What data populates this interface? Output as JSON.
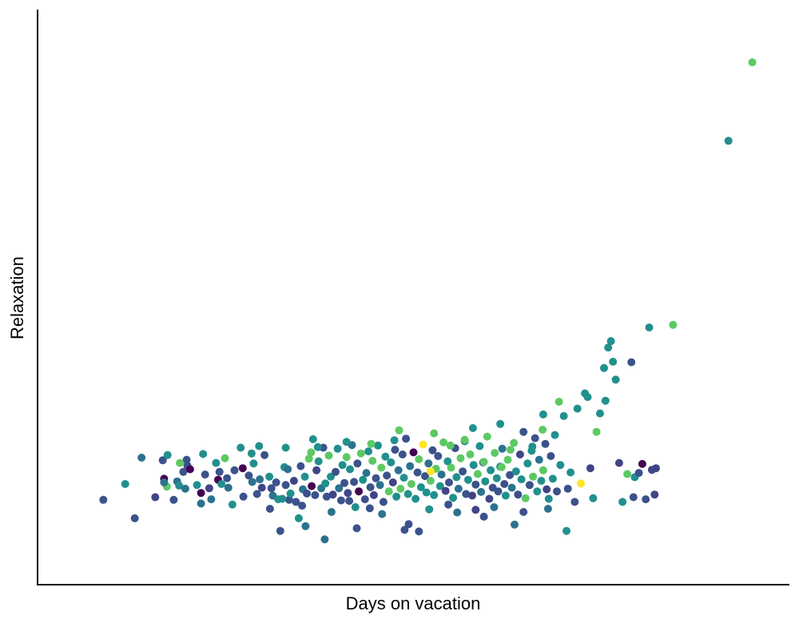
{
  "chart_data": {
    "type": "scatter",
    "xlabel": "Days on vacation",
    "ylabel": "Relaxation",
    "xlim": [
      0,
      100
    ],
    "ylim": [
      0,
      100
    ],
    "grid": false,
    "legend": "none",
    "ticks_shown": false,
    "colormap": "viridis",
    "color_scale": [
      "#440154",
      "#3b528b",
      "#21908d",
      "#5dc963",
      "#fde725"
    ],
    "points": [
      [
        4.6,
        12
      ],
      [
        7.8,
        15
      ],
      [
        9.2,
        8.5
      ],
      [
        10.2,
        20
      ],
      [
        12.2,
        12.5
      ],
      [
        13.3,
        19.5
      ],
      [
        13.5,
        16
      ],
      [
        13.9,
        14.5
      ],
      [
        14.0,
        20.5
      ],
      [
        13.5,
        15.3
      ],
      [
        14.9,
        12
      ],
      [
        15.4,
        15.5
      ],
      [
        15.7,
        14.7
      ],
      [
        16.3,
        17.3
      ],
      [
        16.6,
        14.1
      ],
      [
        16.8,
        19.6
      ],
      [
        16.9,
        18.5
      ],
      [
        17.3,
        17.8
      ],
      [
        18.3,
        14.8
      ],
      [
        18.9,
        11.3
      ],
      [
        19.2,
        20.7
      ],
      [
        19.5,
        16.8
      ],
      [
        20.1,
        14.2
      ],
      [
        20.4,
        12.1
      ],
      [
        21.1,
        19
      ],
      [
        21.4,
        15.8
      ],
      [
        21.6,
        17.3
      ],
      [
        21.9,
        15.0
      ],
      [
        22.4,
        19.9
      ],
      [
        22.7,
        16.1
      ],
      [
        22.9,
        14.3
      ],
      [
        23.5,
        11.1
      ],
      [
        23.8,
        17.6
      ],
      [
        24.7,
        21.9
      ],
      [
        25.1,
        12.6
      ],
      [
        25.9,
        16.6
      ],
      [
        26.4,
        15.4
      ],
      [
        26.6,
        18.9
      ],
      [
        27.1,
        13.1
      ],
      [
        27.5,
        15.9
      ],
      [
        27.8,
        14.3
      ],
      [
        28.2,
        20.5
      ],
      [
        28.9,
        16.4
      ],
      [
        29.2,
        14.2
      ],
      [
        29.4,
        12.8
      ],
      [
        29.9,
        15.3
      ],
      [
        30.2,
        12.1
      ],
      [
        30.5,
        6.1
      ],
      [
        31.1,
        18.2
      ],
      [
        31.3,
        14.8
      ],
      [
        31.6,
        17.8
      ],
      [
        31.8,
        12.0
      ],
      [
        32.0,
        13.2
      ],
      [
        32.5,
        15.6
      ],
      [
        32.8,
        11.6
      ],
      [
        33.2,
        8.5
      ],
      [
        33.5,
        18.4
      ],
      [
        33.8,
        14.0
      ],
      [
        34.1,
        16.4
      ],
      [
        34.4,
        13.2
      ],
      [
        34.7,
        19.8
      ],
      [
        35.1,
        14.6
      ],
      [
        35.3,
        23.5
      ],
      [
        35.6,
        12.9
      ],
      [
        35.8,
        17.6
      ],
      [
        36.1,
        19.3
      ],
      [
        36.5,
        14.2
      ],
      [
        36.8,
        21.9
      ],
      [
        37.1,
        15.1
      ],
      [
        37.3,
        12.6
      ],
      [
        37.6,
        20.4
      ],
      [
        37.9,
        16.4
      ],
      [
        38.2,
        13.0
      ],
      [
        38.6,
        17.3
      ],
      [
        38.9,
        21.7
      ],
      [
        39.1,
        14.2
      ],
      [
        39.4,
        11.9
      ],
      [
        39.6,
        18.6
      ],
      [
        39.9,
        15.2
      ],
      [
        40.2,
        20.1
      ],
      [
        40.4,
        13.3
      ],
      [
        40.7,
        17.8
      ],
      [
        41.0,
        22.4
      ],
      [
        41.3,
        15.4
      ],
      [
        41.5,
        10.6
      ],
      [
        41.8,
        18.9
      ],
      [
        42.0,
        13.6
      ],
      [
        42.3,
        20.8
      ],
      [
        42.6,
        15.8
      ],
      [
        42.9,
        12.1
      ],
      [
        43.1,
        17.1
      ],
      [
        43.4,
        21.2
      ],
      [
        43.7,
        14.4
      ],
      [
        44.0,
        19.4
      ],
      [
        44.2,
        12.9
      ],
      [
        44.5,
        16.1
      ],
      [
        44.8,
        22.3
      ],
      [
        45.1,
        14.8
      ],
      [
        45.3,
        18.1
      ],
      [
        45.6,
        11.6
      ],
      [
        45.9,
        20.2
      ],
      [
        46.1,
        16.6
      ],
      [
        46.4,
        13.6
      ],
      [
        46.7,
        19.1
      ],
      [
        47.0,
        15.3
      ],
      [
        47.3,
        21.5
      ],
      [
        47.5,
        12.6
      ],
      [
        47.8,
        17.6
      ],
      [
        48.1,
        14.1
      ],
      [
        48.4,
        20.6
      ],
      [
        48.6,
        16.2
      ],
      [
        48.9,
        23.6
      ],
      [
        49.2,
        13.1
      ],
      [
        49.5,
        18.4
      ],
      [
        49.7,
        15.0
      ],
      [
        50.0,
        21.0
      ],
      [
        50.3,
        12.2
      ],
      [
        50.6,
        17.2
      ],
      [
        50.8,
        19.7
      ],
      [
        51.1,
        14.4
      ],
      [
        51.4,
        22.5
      ],
      [
        51.7,
        16.5
      ],
      [
        51.9,
        13.4
      ],
      [
        52.2,
        18.9
      ],
      [
        52.5,
        15.6
      ],
      [
        52.8,
        21.4
      ],
      [
        53.0,
        12.9
      ],
      [
        53.3,
        17.9
      ],
      [
        53.6,
        20.3
      ],
      [
        53.9,
        14.6
      ],
      [
        54.1,
        16.8
      ],
      [
        54.4,
        22.9
      ],
      [
        54.7,
        13.7
      ],
      [
        55.0,
        19.3
      ],
      [
        55.2,
        15.3
      ],
      [
        55.5,
        18.1
      ],
      [
        55.8,
        12.4
      ],
      [
        56.1,
        21.8
      ],
      [
        56.3,
        16.3
      ],
      [
        56.6,
        14.1
      ],
      [
        56.9,
        19.9
      ],
      [
        57.2,
        17.4
      ],
      [
        57.5,
        23.1
      ],
      [
        57.7,
        13.1
      ],
      [
        58.0,
        15.8
      ],
      [
        58.3,
        20.6
      ],
      [
        58.6,
        12.8
      ],
      [
        58.8,
        18.6
      ],
      [
        59.1,
        14.9
      ],
      [
        59.4,
        16.9
      ],
      [
        59.7,
        22.2
      ],
      [
        59.9,
        13.5
      ],
      [
        60.2,
        19.1
      ],
      [
        60.5,
        15.5
      ],
      [
        60.8,
        24.0
      ],
      [
        61.1,
        12.2
      ],
      [
        61.3,
        17.6
      ],
      [
        61.6,
        14.3
      ],
      [
        61.9,
        20.9
      ],
      [
        62.2,
        16.1
      ],
      [
        62.4,
        13.6
      ],
      [
        62.7,
        18.3
      ],
      [
        63.0,
        21.7
      ],
      [
        63.3,
        15.0
      ],
      [
        63.5,
        12.8
      ],
      [
        63.8,
        19.6
      ],
      [
        64.1,
        16.7
      ],
      [
        64.4,
        14.3
      ],
      [
        64.7,
        22.8
      ],
      [
        65.0,
        17.4
      ],
      [
        65.3,
        13.0
      ],
      [
        65.6,
        20.6
      ],
      [
        65.8,
        15.9
      ],
      [
        66.1,
        24.9
      ],
      [
        66.4,
        12.3
      ],
      [
        66.7,
        18.9
      ],
      [
        67.0,
        14.8
      ],
      [
        67.3,
        21.3
      ],
      [
        67.5,
        16.4
      ],
      [
        67.8,
        23.7
      ],
      [
        68.1,
        13.6
      ],
      [
        68.4,
        19.6
      ],
      [
        68.7,
        15.6
      ],
      [
        69.0,
        17.6
      ],
      [
        69.3,
        22.6
      ],
      [
        69.5,
        14.0
      ],
      [
        69.8,
        12.2
      ],
      [
        70.1,
        20.3
      ],
      [
        70.4,
        16.0
      ],
      [
        70.7,
        24.3
      ],
      [
        71.0,
        13.6
      ],
      [
        71.3,
        30.6
      ],
      [
        71.5,
        18.6
      ],
      [
        72.0,
        27.9
      ],
      [
        72.6,
        14.1
      ],
      [
        73.0,
        17.2
      ],
      [
        73.6,
        11.6
      ],
      [
        74.0,
        29.3
      ],
      [
        74.5,
        15.1
      ],
      [
        75.1,
        32.2
      ],
      [
        75.5,
        31.5
      ],
      [
        75.9,
        18.0
      ],
      [
        76.3,
        12.3
      ],
      [
        76.8,
        24.9
      ],
      [
        77.3,
        28.4
      ],
      [
        77.9,
        37.0
      ],
      [
        78.1,
        30.8
      ],
      [
        78.5,
        40.9
      ],
      [
        78.9,
        42.1
      ],
      [
        79.2,
        38.2
      ],
      [
        79.6,
        34.8
      ],
      [
        80.1,
        19.0
      ],
      [
        80.6,
        11.6
      ],
      [
        81.3,
        16.9
      ],
      [
        81.9,
        38.1
      ],
      [
        82.2,
        12.5
      ],
      [
        82.4,
        16.3
      ],
      [
        83.0,
        17.1
      ],
      [
        83.5,
        18.8
      ],
      [
        84.0,
        12.1
      ],
      [
        84.5,
        44.7
      ],
      [
        84.9,
        17.7
      ],
      [
        85.3,
        13.0
      ],
      [
        85.5,
        18.0
      ],
      [
        88.0,
        45.2
      ],
      [
        96.1,
        80.1
      ],
      [
        99.6,
        95.0
      ],
      [
        18.9,
        13.3
      ],
      [
        25.0,
        18.0
      ],
      [
        29.0,
        10.3
      ],
      [
        33.7,
        10.9
      ],
      [
        38.0,
        9.7
      ],
      [
        40.6,
        11.8
      ],
      [
        43.6,
        10.4
      ],
      [
        45.4,
        9.3
      ],
      [
        49.3,
        7.4
      ],
      [
        52.3,
        10.2
      ],
      [
        55.1,
        11.1
      ],
      [
        56.4,
        9.6
      ],
      [
        59.1,
        10.1
      ],
      [
        60.3,
        8.8
      ],
      [
        61.8,
        10.6
      ],
      [
        64.8,
        7.3
      ],
      [
        66.1,
        9.7
      ],
      [
        69.7,
        10.3
      ],
      [
        72.4,
        6.1
      ],
      [
        34.2,
        7.0
      ],
      [
        37.0,
        4.5
      ],
      [
        41.7,
        6.6
      ],
      [
        48.7,
        6.3
      ],
      [
        50.8,
        6.0
      ],
      [
        30.8,
        12.2
      ],
      [
        47.9,
        25.2
      ],
      [
        53.0,
        24.6
      ],
      [
        57.5,
        23.4
      ],
      [
        52.5,
        17.4
      ],
      [
        55.4,
        22.3
      ],
      [
        60.3,
        19.2
      ],
      [
        62.9,
        18.2
      ],
      [
        64.2,
        21.5
      ],
      [
        67.4,
        22.1
      ],
      [
        68.9,
        25.3
      ],
      [
        15.8,
        19.0
      ],
      [
        43.8,
        22.6
      ],
      [
        47.2,
        23.3
      ],
      [
        26.3,
        20.8
      ],
      [
        31.3,
        21.9
      ],
      [
        35.0,
        21.0
      ],
      [
        40.2,
        23.0
      ],
      [
        36.0,
        22.0
      ],
      [
        27.4,
        22.2
      ],
      [
        58.7,
        25.6
      ],
      [
        62.7,
        26.4
      ],
      [
        69.0,
        28.2
      ]
    ],
    "colors": [
      "#3b528b",
      "#21908d",
      "#3b528b",
      "#2c728e",
      "#414487",
      "#3b528b",
      "#440154",
      "#5dc963",
      "#21908d",
      "#2c728e",
      "#3b528b",
      "#2c728e",
      "#21908d",
      "#3b528b",
      "#2c728e",
      "#3b528b",
      "#3b528b",
      "#440154",
      "#21908d",
      "#2c728e",
      "#21908d",
      "#3b528b",
      "#414487",
      "#2c728e",
      "#21908d",
      "#440154",
      "#3b528b",
      "#21908d",
      "#5dc963",
      "#3b528b",
      "#2c728e",
      "#21908d",
      "#3b528b",
      "#21908d",
      "#3b528b",
      "#3b528b",
      "#2c728e",
      "#21908d",
      "#3b528b",
      "#2c728e",
      "#414487",
      "#3b528b",
      "#21908d",
      "#3b528b",
      "#2c728e",
      "#3b528b",
      "#21908d",
      "#3b528b",
      "#21908d",
      "#3b528b",
      "#2c728e",
      "#3b528b",
      "#21908d",
      "#414487",
      "#3b528b",
      "#21908d",
      "#3b528b",
      "#2c728e",
      "#21908d",
      "#3b528b",
      "#5dc963",
      "#440154",
      "#21908d",
      "#3b528b",
      "#414487",
      "#21908d",
      "#2c728e",
      "#3b528b",
      "#21908d",
      "#3b528b",
      "#5dc963",
      "#21908d",
      "#414487",
      "#3b528b",
      "#21908d",
      "#2c728e",
      "#3b528b",
      "#21908d",
      "#3b528b",
      "#5dc963",
      "#414487",
      "#21908d",
      "#2c728e",
      "#3b528b",
      "#21908d",
      "#3b528b",
      "#440154",
      "#5dc963",
      "#21908d",
      "#3b528b",
      "#2c728e",
      "#21908d",
      "#3b528b",
      "#5dc963",
      "#414487",
      "#3b528b",
      "#21908d",
      "#2c728e",
      "#5dc963",
      "#3b528b",
      "#21908d",
      "#3b528b",
      "#5dc963",
      "#21908d",
      "#414487",
      "#3b528b",
      "#21908d",
      "#2c728e",
      "#5dc963",
      "#3b528b",
      "#21908d",
      "#3b528b",
      "#21908d",
      "#2c728e",
      "#5dc963",
      "#440154",
      "#21908d",
      "#3b528b",
      "#5dc963",
      "#21908d",
      "#fde725",
      "#3b528b",
      "#21908d",
      "#2c728e",
      "#5dc963",
      "#3b528b",
      "#21908d",
      "#5dc963",
      "#3b528b",
      "#21908d",
      "#2c728e",
      "#5dc963",
      "#414487",
      "#21908d",
      "#3b528b",
      "#5dc963",
      "#21908d",
      "#3b528b",
      "#21908d",
      "#2c728e",
      "#5dc963",
      "#3b528b",
      "#21908d",
      "#3b528b",
      "#21908d",
      "#5dc963",
      "#414487",
      "#21908d",
      "#3b528b",
      "#5dc963",
      "#21908d",
      "#2c728e",
      "#3b528b",
      "#21908d",
      "#5dc963",
      "#414487",
      "#21908d",
      "#3b528b",
      "#5dc963",
      "#21908d",
      "#3b528b",
      "#21908d",
      "#2c728e",
      "#3b528b",
      "#21908d",
      "#5dc963",
      "#3b528b",
      "#2c728e",
      "#5dc963",
      "#21908d",
      "#3b528b",
      "#414487",
      "#21908d",
      "#3b528b",
      "#5dc963",
      "#21908d",
      "#3b528b",
      "#21908d",
      "#5dc963",
      "#3b528b",
      "#21908d",
      "#2c728e",
      "#21908d",
      "#5dc963",
      "#3b528b",
      "#414487",
      "#21908d",
      "#3b528b",
      "#21908d",
      "#21908d",
      "#3b528b",
      "#5dc963",
      "#21908d",
      "#21908d",
      "#3b528b",
      "#21908d",
      "#3b528b",
      "#21908d",
      "#fde725",
      "#21908d",
      "#21908d",
      "#414487",
      "#21908d",
      "#5dc963",
      "#21908d",
      "#21908d",
      "#21908d",
      "#21908d",
      "#21908d",
      "#21908d",
      "#21908d",
      "#414487",
      "#21908d",
      "#5dc963",
      "#3b528b",
      "#3b528b",
      "#21908d",
      "#3b528b",
      "#440154",
      "#3b528b",
      "#21908d",
      "#414487",
      "#414487",
      "#414487",
      "#5dc963",
      "#21908d",
      "#5dc963",
      "#440154",
      "#440154",
      "#3b528b",
      "#3b528b",
      "#2c728e",
      "#3b528b",
      "#3b528b",
      "#2c728e",
      "#3b528b",
      "#21908d",
      "#3b528b",
      "#2c728e",
      "#414487",
      "#3b528b",
      "#2c728e",
      "#2c728e",
      "#3b528b",
      "#2c728e",
      "#21908d",
      "#2c728e",
      "#2c728e",
      "#3b528b",
      "#3b528b",
      "#3b528b",
      "#21908d",
      "#5dc963",
      "#5dc963",
      "#5dc963",
      "#fde725",
      "#5dc963",
      "#5dc963",
      "#5dc963",
      "#5dc963",
      "#21908d",
      "#5dc963",
      "#5dc963",
      "#5dc963",
      "#21908d",
      "#21908d",
      "#21908d",
      "#5dc963",
      "#21908d",
      "#21908d",
      "#21908d",
      "#21908d",
      "#21908d",
      "#21908d"
    ]
  }
}
